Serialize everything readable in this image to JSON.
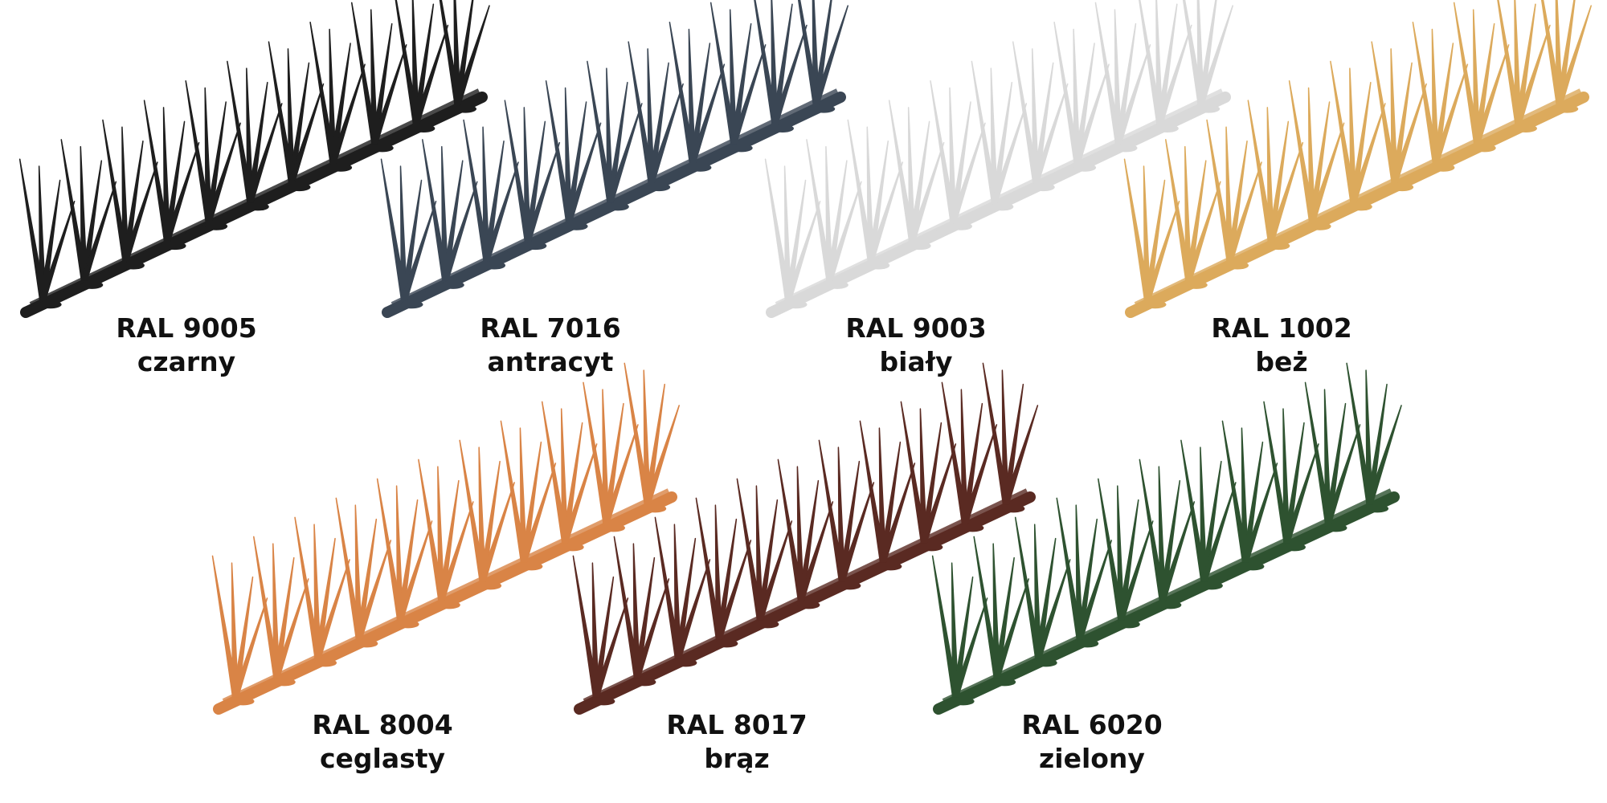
{
  "items": [
    {
      "code": "RAL 9005",
      "name": "czarny",
      "color": "#1e1e1e"
    },
    {
      "code": "RAL 7016",
      "name": "antracyt",
      "color": "#3a4654"
    },
    {
      "code": "RAL 9003",
      "name": "biały",
      "color": "#d9d9d9"
    },
    {
      "code": "RAL 1002",
      "name": "beż",
      "color": "#dcaa5c"
    },
    {
      "code": "RAL 8004",
      "name": "ceglasty",
      "color": "#d98446"
    },
    {
      "code": "RAL 8017",
      "name": "brąz",
      "color": "#5a2a22"
    },
    {
      "code": "RAL 6020",
      "name": "zielony",
      "color": "#2e5230"
    }
  ]
}
